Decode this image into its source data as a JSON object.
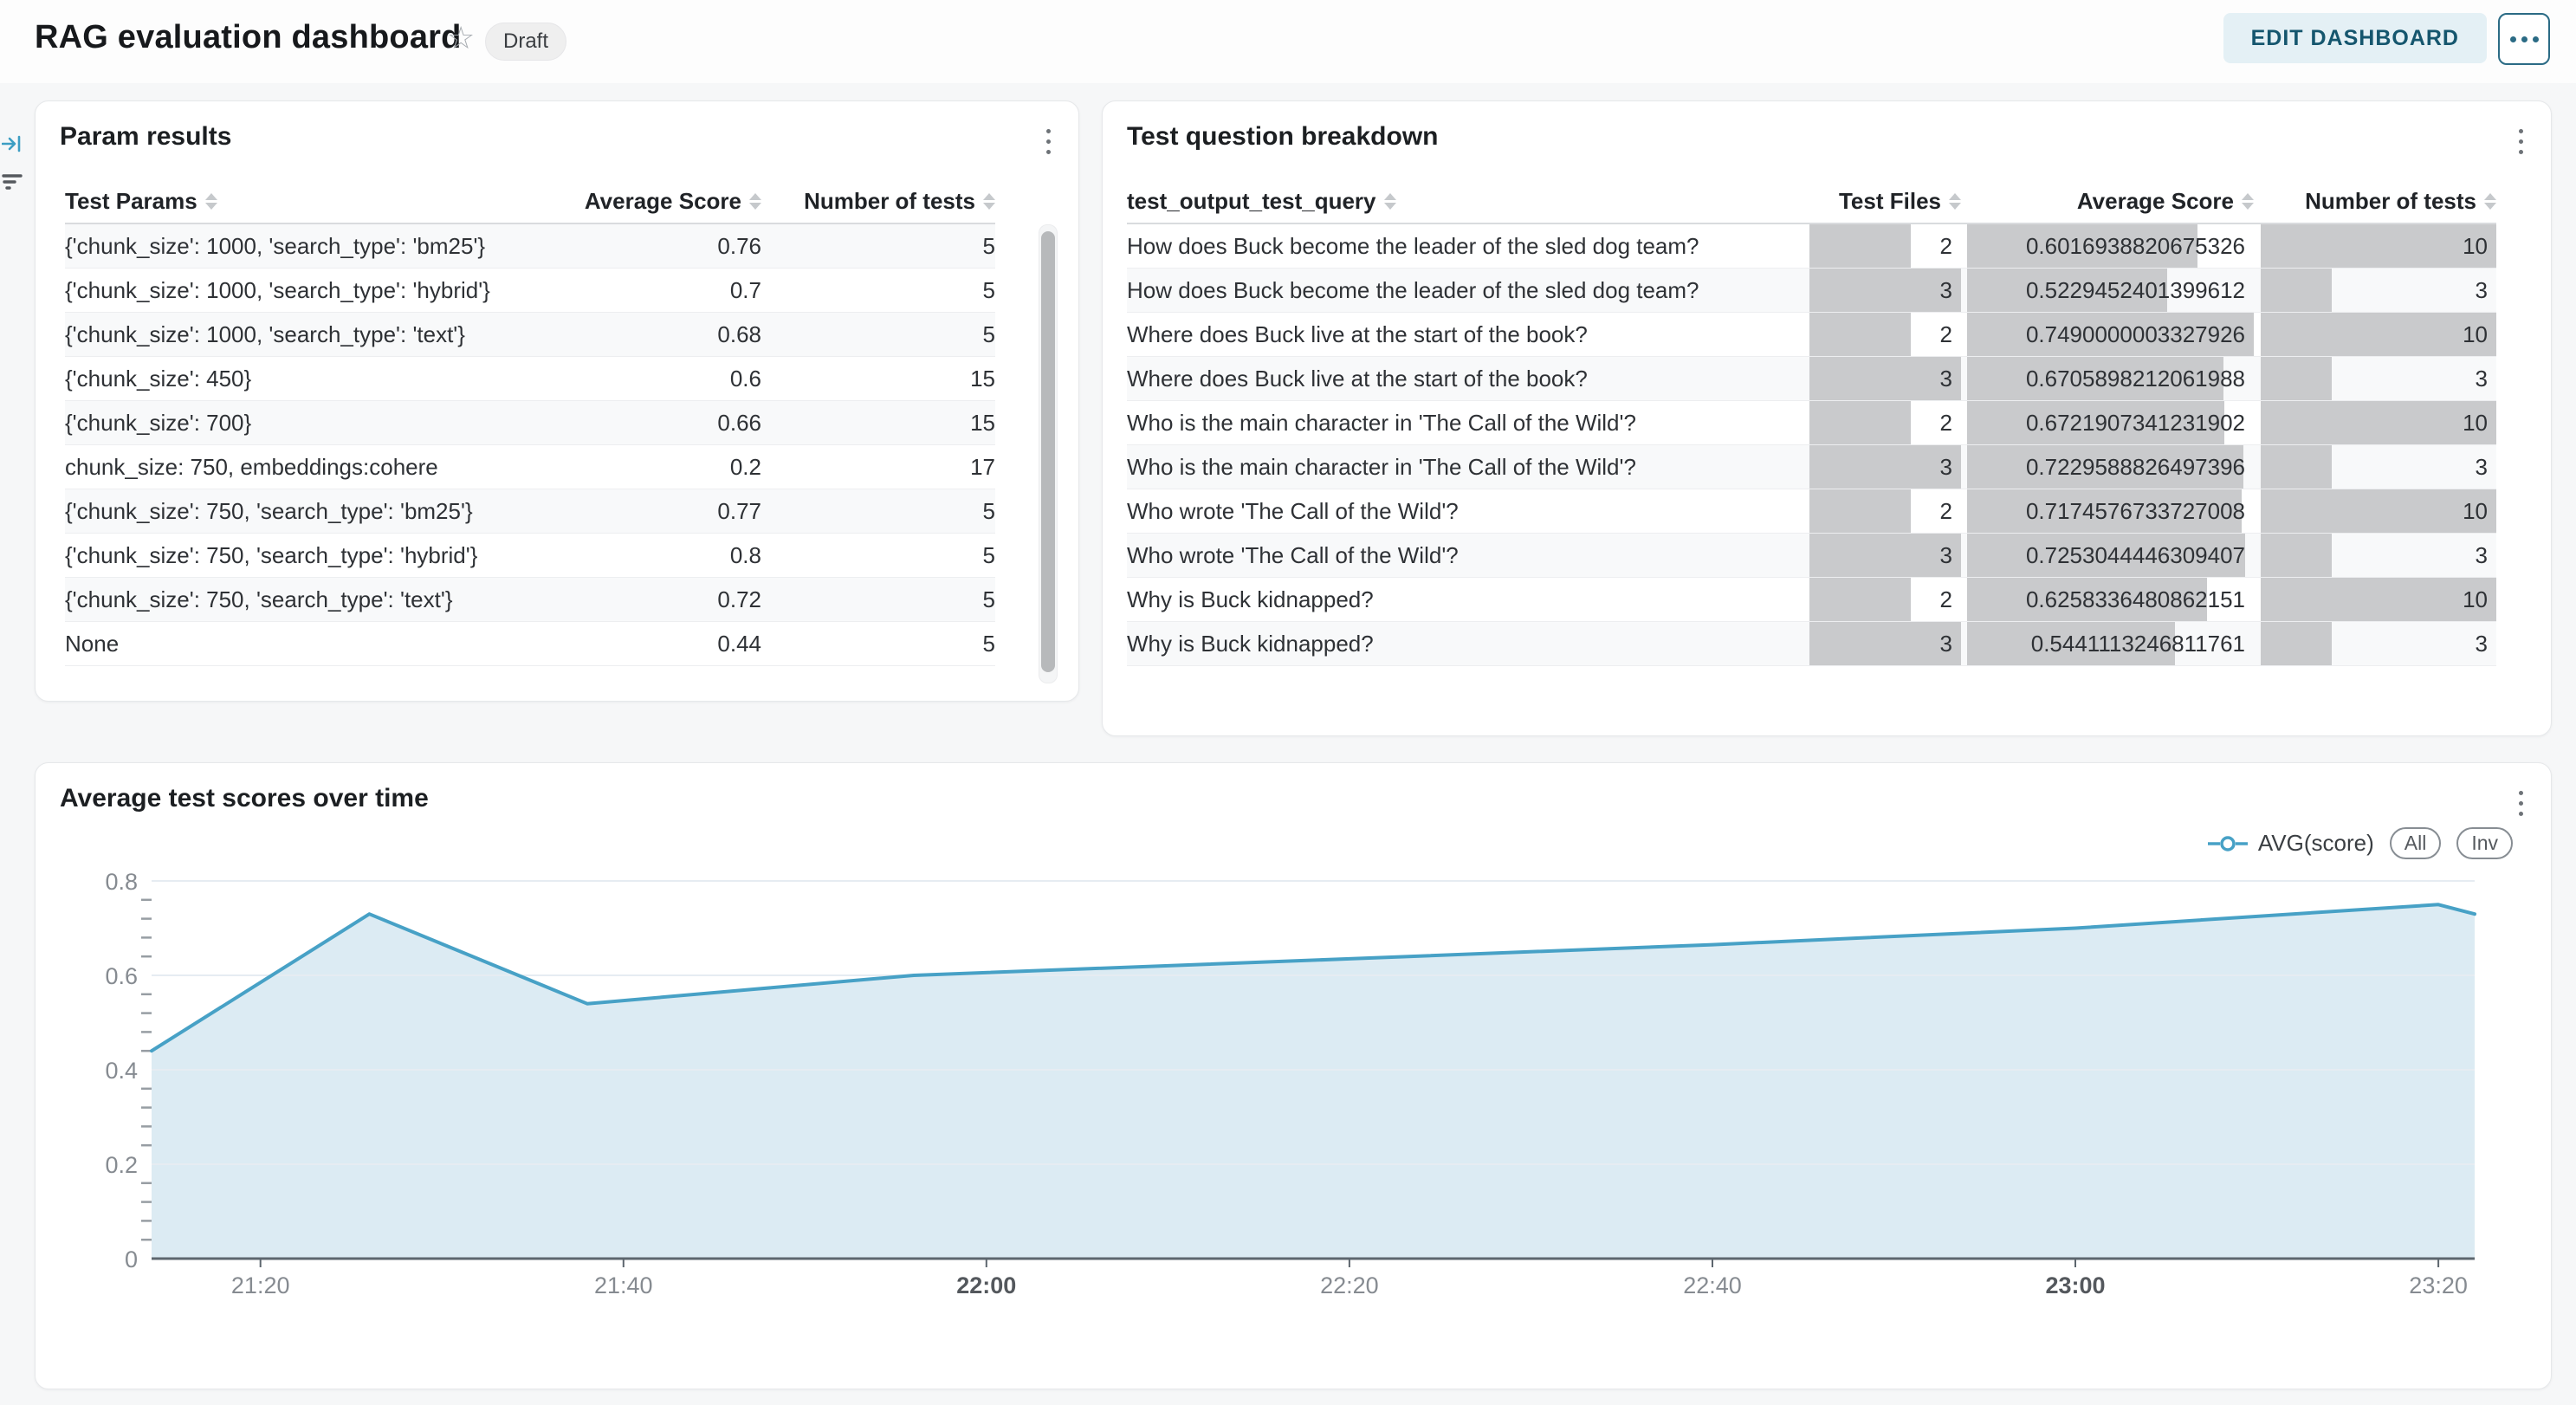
{
  "header": {
    "title": "RAG evaluation dashboard",
    "status_badge": "Draft",
    "edit_button": "EDIT DASHBOARD"
  },
  "param_results": {
    "title": "Param results",
    "columns": [
      "Test Params",
      "Average Score",
      "Number of tests"
    ],
    "rows": [
      [
        "{'chunk_size': 1000, 'search_type': 'bm25'}",
        "0.76",
        "5"
      ],
      [
        "{'chunk_size': 1000, 'search_type': 'hybrid'}",
        "0.7",
        "5"
      ],
      [
        "{'chunk_size': 1000, 'search_type': 'text'}",
        "0.68",
        "5"
      ],
      [
        "{'chunk_size': 450}",
        "0.6",
        "15"
      ],
      [
        "{'chunk_size': 700}",
        "0.66",
        "15"
      ],
      [
        "chunk_size: 750, embeddings:cohere",
        "0.2",
        "17"
      ],
      [
        "{'chunk_size': 750, 'search_type': 'bm25'}",
        "0.77",
        "5"
      ],
      [
        "{'chunk_size': 750, 'search_type': 'hybrid'}",
        "0.8",
        "5"
      ],
      [
        "{'chunk_size': 750, 'search_type': 'text'}",
        "0.72",
        "5"
      ],
      [
        "None",
        "0.44",
        "5"
      ]
    ]
  },
  "question_breakdown": {
    "title": "Test question breakdown",
    "columns": [
      "test_output_test_query",
      "Test Files",
      "Average Score",
      "Number of tests"
    ],
    "rows": [
      {
        "query": "How does Buck become the leader of the sled dog team?",
        "files": 2,
        "score": "0.6016938820675326",
        "tests": 10
      },
      {
        "query": "How does Buck become the leader of the sled dog team?",
        "files": 3,
        "score": "0.5229452401399612",
        "tests": 3
      },
      {
        "query": "Where does Buck live at the start of the book?",
        "files": 2,
        "score": "0.7490000003327926",
        "tests": 10
      },
      {
        "query": "Where does Buck live at the start of the book?",
        "files": 3,
        "score": "0.6705898212061988",
        "tests": 3
      },
      {
        "query": "Who is the main character in 'The Call of the Wild'?",
        "files": 2,
        "score": "0.6721907341231902",
        "tests": 10
      },
      {
        "query": "Who is the main character in 'The Call of the Wild'?",
        "files": 3,
        "score": "0.7229588826497396",
        "tests": 3
      },
      {
        "query": "Who wrote 'The Call of the Wild'?",
        "files": 2,
        "score": "0.7174576733727008",
        "tests": 10
      },
      {
        "query": "Who wrote 'The Call of the Wild'?",
        "files": 3,
        "score": "0.7253044446309407",
        "tests": 3
      },
      {
        "query": "Why is Buck kidnapped?",
        "files": 2,
        "score": "0.6258336480862151",
        "tests": 10
      },
      {
        "query": "Why is Buck kidnapped?",
        "files": 3,
        "score": "0.5441113246811761",
        "tests": 3
      }
    ]
  },
  "chart": {
    "title": "Average test scores over time",
    "legend_series": "AVG(score)",
    "buttons": [
      "All",
      "Inv"
    ]
  },
  "chart_data": {
    "type": "area",
    "title": "Average test scores over time",
    "series": [
      {
        "name": "AVG(score)",
        "x": [
          "21:14",
          "21:26",
          "21:38",
          "21:56",
          "22:20",
          "22:40",
          "23:00",
          "23:20",
          "23:22"
        ],
        "values": [
          0.44,
          0.73,
          0.54,
          0.6,
          0.635,
          0.665,
          0.7,
          0.75,
          0.73
        ]
      }
    ],
    "x_domain": [
      "21:14",
      "23:22"
    ],
    "x_ticks": [
      "21:20",
      "21:40",
      "22:00",
      "22:20",
      "22:40",
      "23:00",
      "23:20"
    ],
    "x_ticks_bold": [
      "22:00",
      "23:00"
    ],
    "ylim": [
      0,
      0.8
    ],
    "y_ticks": [
      0,
      0.2,
      0.4,
      0.6,
      0.8
    ],
    "y_tick_labels": [
      "0",
      "0.2",
      "0.4",
      "0.6",
      "0.8"
    ],
    "y_minor_step": 0.04,
    "grid": true,
    "legend_position": "top-right",
    "line_color": "#47a1c6",
    "fill_color": "#dcebf3"
  },
  "colors": {
    "accent_blue": "#3d9ec3",
    "edit_button_bg": "#e4f0f5",
    "edit_button_text": "#15566e",
    "data_bar_gray": "#c9cacc",
    "card_border": "#e6e8ea"
  }
}
